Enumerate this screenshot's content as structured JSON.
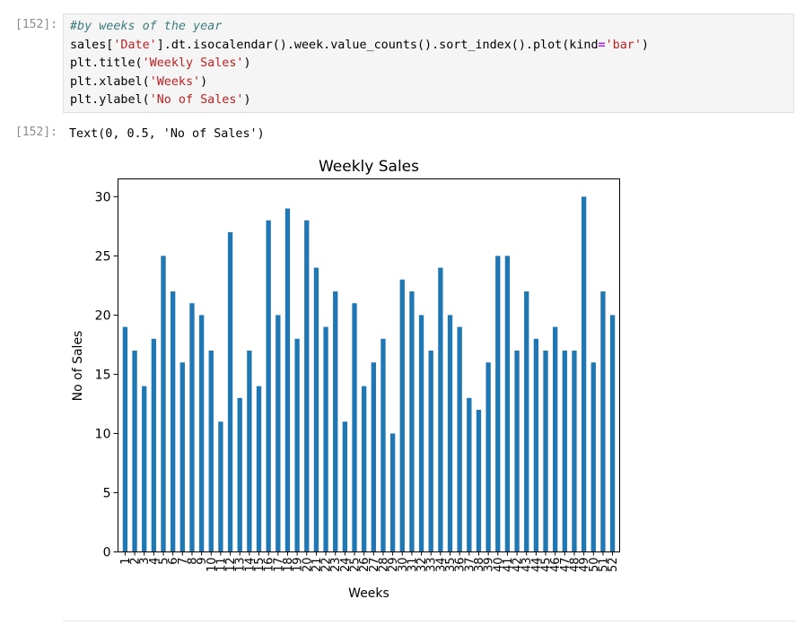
{
  "input_cell": {
    "prompt": "[152]:",
    "lines": [
      [
        {
          "t": "#by weeks of the year",
          "c": "comment"
        }
      ],
      [
        {
          "t": "sales[",
          "c": "plain"
        },
        {
          "t": "'Date'",
          "c": "str"
        },
        {
          "t": "].dt.isocalendar().week.value_counts().sort_index().plot(kind",
          "c": "plain"
        },
        {
          "t": "=",
          "c": "op"
        },
        {
          "t": "'bar'",
          "c": "str"
        },
        {
          "t": ")",
          "c": "plain"
        }
      ],
      [
        {
          "t": "plt.title(",
          "c": "plain"
        },
        {
          "t": "'Weekly Sales'",
          "c": "str"
        },
        {
          "t": ")",
          "c": "plain"
        }
      ],
      [
        {
          "t": "plt.xlabel(",
          "c": "plain"
        },
        {
          "t": "'Weeks'",
          "c": "str"
        },
        {
          "t": ")",
          "c": "plain"
        }
      ],
      [
        {
          "t": "plt.ylabel(",
          "c": "plain"
        },
        {
          "t": "'No of Sales'",
          "c": "str"
        },
        {
          "t": ")",
          "c": "plain"
        }
      ]
    ]
  },
  "output_cell": {
    "prompt": "[152]:",
    "text": "Text(0, 0.5, 'No of Sales')"
  },
  "colors": {
    "bar": "#1f77b4",
    "comment": "#3d7a7a",
    "string": "#ba2121",
    "operator": "#aa22ff"
  },
  "chart_data": {
    "type": "bar",
    "title": "Weekly Sales",
    "xlabel": "Weeks",
    "ylabel": "No of Sales",
    "ylim": [
      0,
      31.5
    ],
    "yticks": [
      0,
      5,
      10,
      15,
      20,
      25,
      30
    ],
    "grid": false,
    "categories": [
      "1",
      "2",
      "3",
      "4",
      "5",
      "6",
      "7",
      "8",
      "9",
      "10",
      "11",
      "12",
      "13",
      "14",
      "15",
      "16",
      "17",
      "18",
      "19",
      "20",
      "21",
      "22",
      "23",
      "24",
      "25",
      "26",
      "27",
      "28",
      "29",
      "30",
      "31",
      "32",
      "33",
      "34",
      "35",
      "36",
      "37",
      "38",
      "39",
      "40",
      "41",
      "42",
      "43",
      "44",
      "45",
      "46",
      "47",
      "48",
      "49",
      "50",
      "51",
      "52"
    ],
    "values": [
      19,
      17,
      14,
      18,
      25,
      22,
      16,
      21,
      20,
      17,
      11,
      27,
      13,
      17,
      14,
      28,
      20,
      29,
      18,
      28,
      24,
      19,
      22,
      11,
      21,
      14,
      16,
      18,
      10,
      23,
      22,
      20,
      17,
      24,
      20,
      19,
      13,
      12,
      16,
      25,
      25,
      17,
      22,
      18,
      17,
      19,
      17,
      17,
      30,
      16,
      22,
      20
    ]
  }
}
